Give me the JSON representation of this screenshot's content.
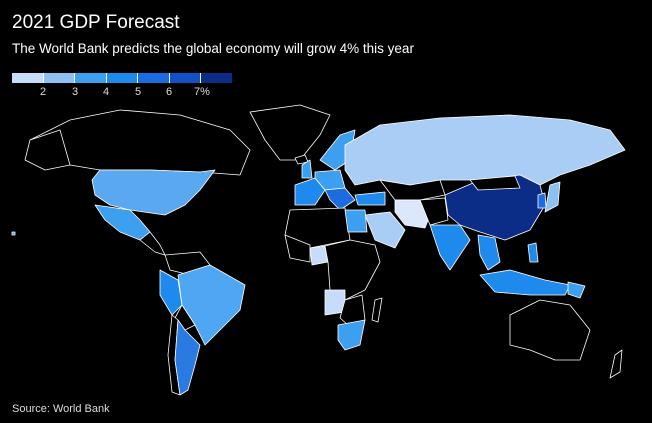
{
  "title": "2021 GDP Forecast",
  "subtitle": "The World Bank predicts the global economy will grow 4% this year",
  "legend": {
    "ticks": [
      "2",
      "3",
      "4",
      "5",
      "6",
      "7%"
    ],
    "colors": [
      "#c6dcfa",
      "#8ec0f4",
      "#3d9ff0",
      "#1e8aee",
      "#1a6ce0",
      "#1250c6",
      "#0b2d88"
    ]
  },
  "map_colors": {
    "background": "#000000",
    "no_data": "#000000",
    "border": "#ffffff"
  },
  "source": "Source: World Bank"
}
